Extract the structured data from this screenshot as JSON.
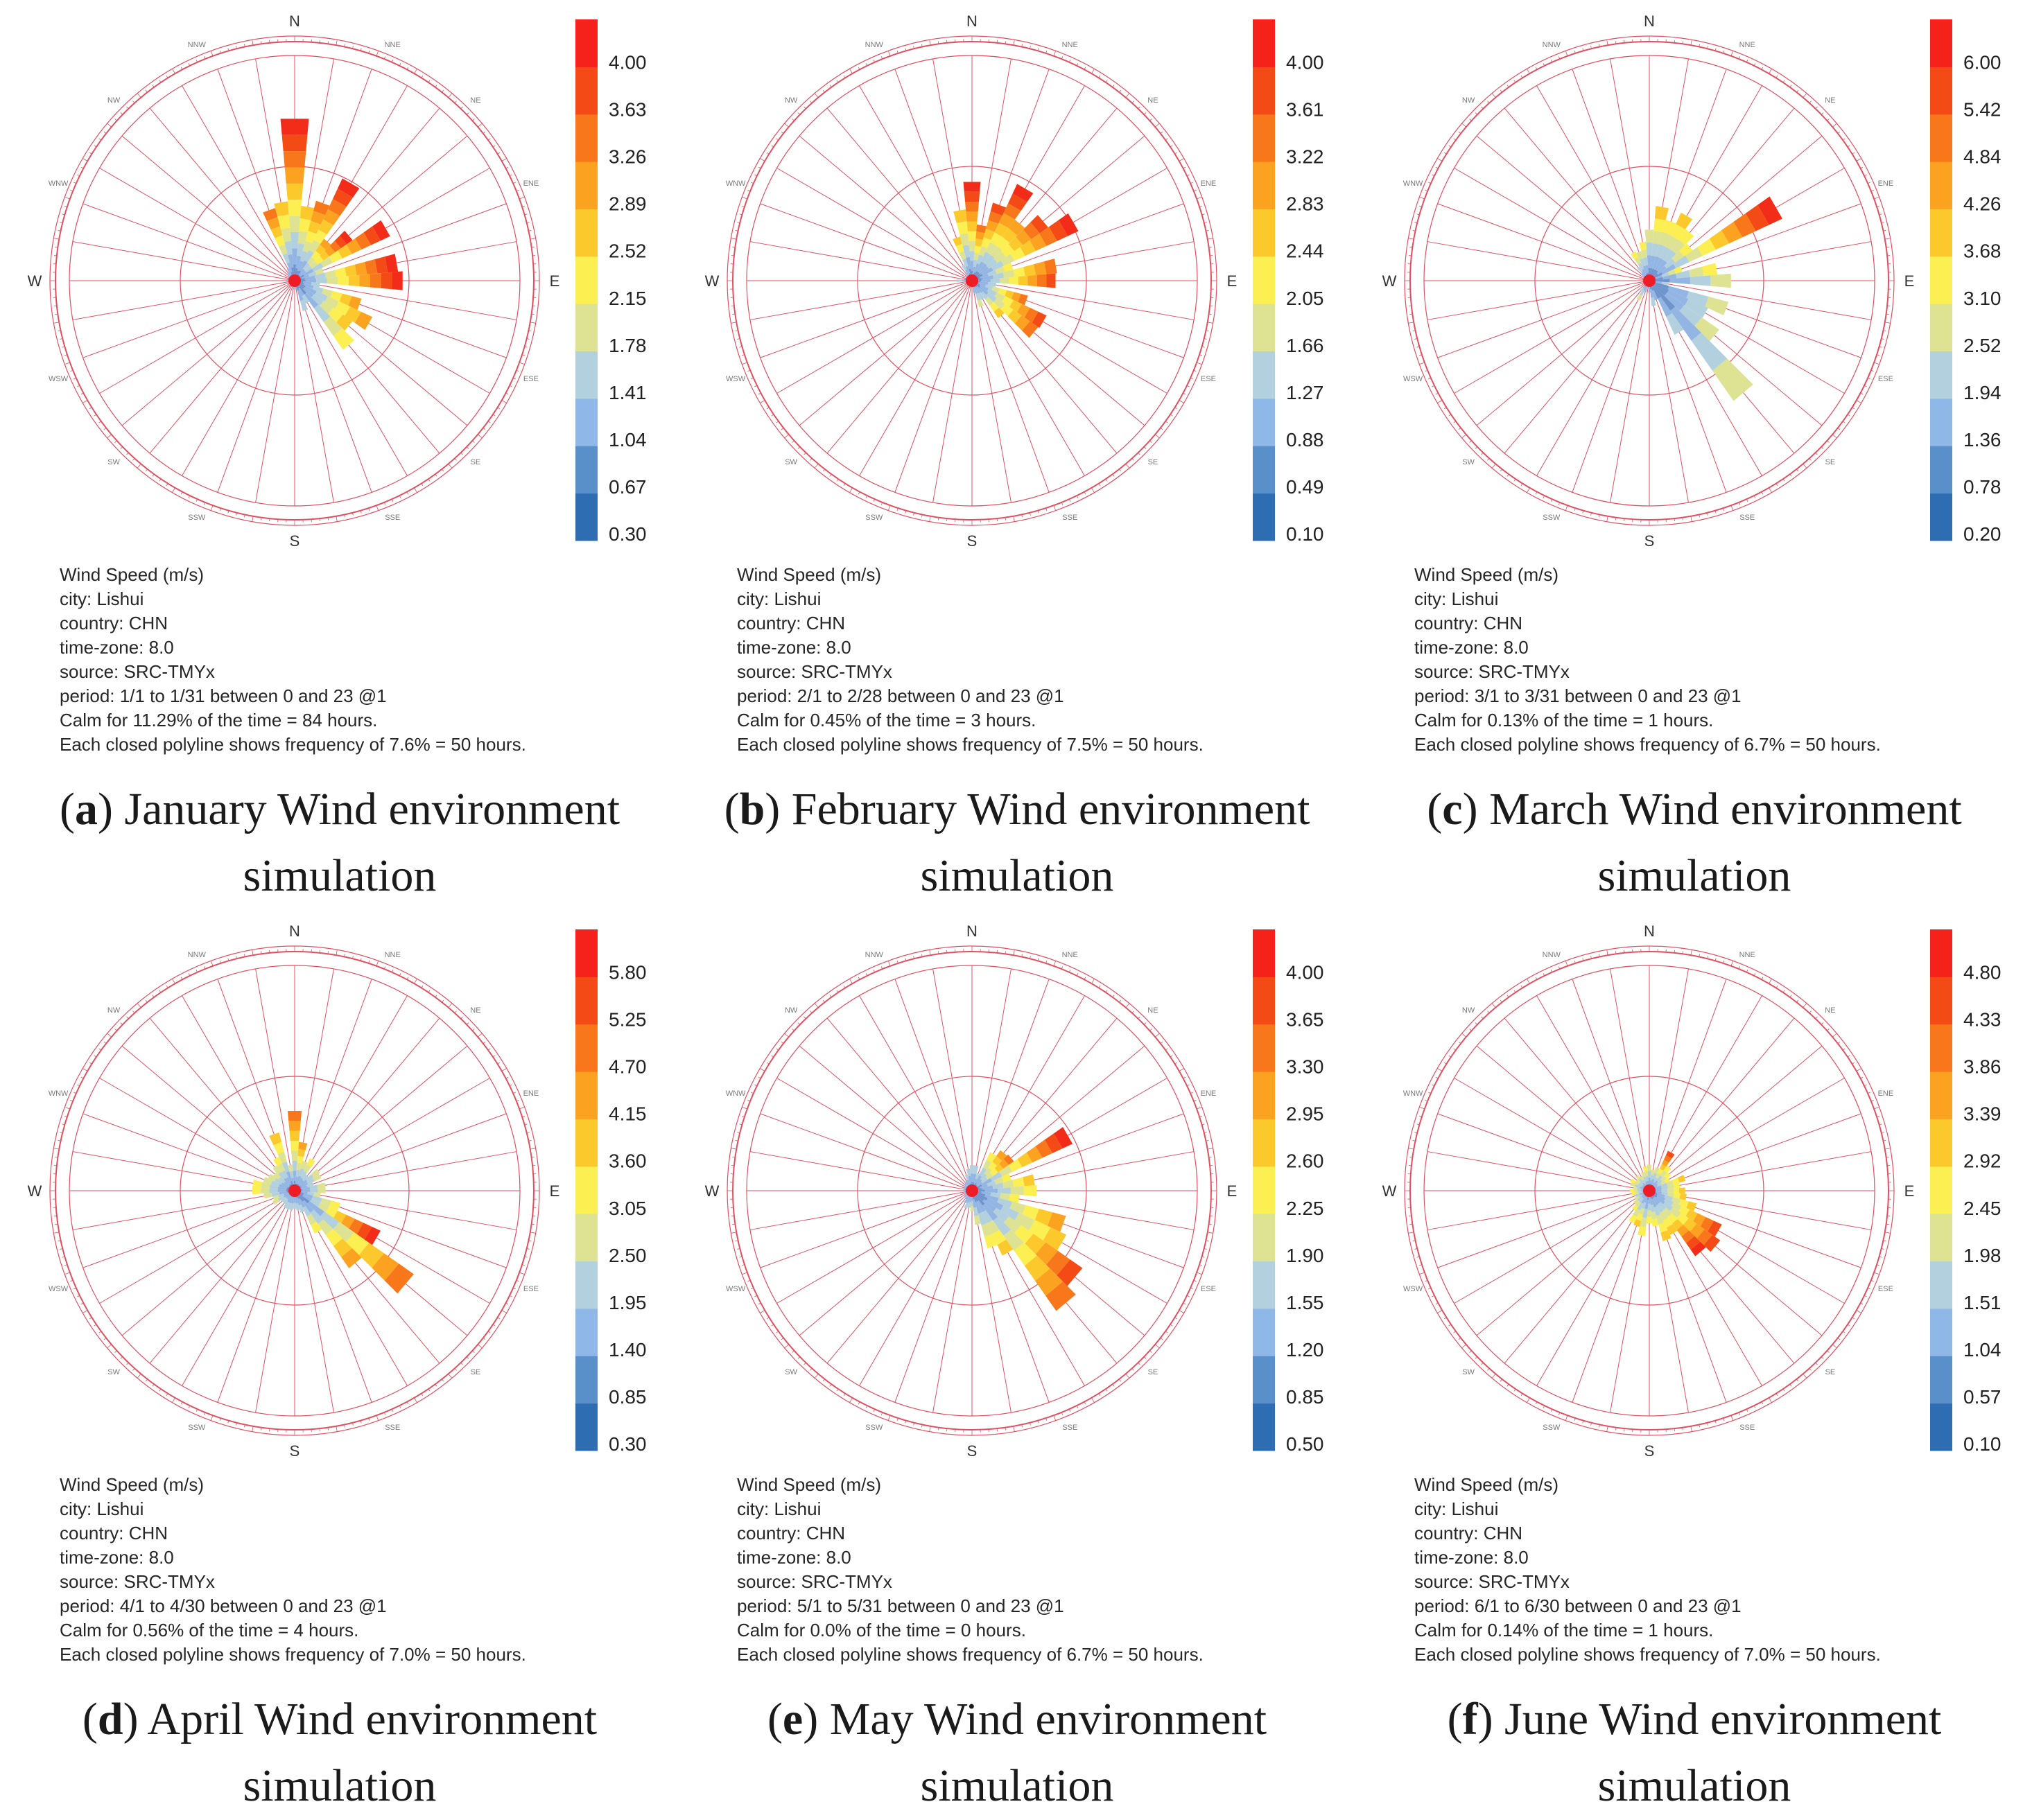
{
  "figure": {
    "direction_labels": [
      "N",
      "NNE",
      "NE",
      "ENE",
      "E",
      "ESE",
      "SE",
      "SSE",
      "S",
      "SSW",
      "SW",
      "WSW",
      "W",
      "WNW",
      "NW",
      "NNW"
    ],
    "legend_palette": [
      "#2f6db3",
      "#5a90c9",
      "#8fb8e8",
      "#b3d0de",
      "#dde392",
      "#fbef52",
      "#fcc92d",
      "#fba221",
      "#f8771a",
      "#f44b16",
      "#f5211b"
    ],
    "bar_palette": [
      "#6e93cd",
      "#93b5e3",
      "#b3d0de",
      "#dde392",
      "#fbef52",
      "#fcc92d",
      "#fba221",
      "#f8771a",
      "#f44b16",
      "#f22c18"
    ],
    "grid_color": "#e05060",
    "center_color": "#ee1c25"
  },
  "panels": [
    {
      "caption": {
        "letter": "a",
        "text": "January Wind environment simulation"
      },
      "info": {
        "title": "Wind Speed (m/s)",
        "city": "city: Lishui",
        "country": "country: CHN",
        "timezone": "time-zone: 8.0",
        "source": "source: SRC-TMYx",
        "period": "period: 1/1 to 1/31 between 0 and 23 @1",
        "calm": "Calm for 11.29% of the time = 84 hours.",
        "polyline": "Each closed polyline shows frequency of 7.6% = 50 hours."
      },
      "chart_data": {
        "type": "wind-rose",
        "title": "Wind Speed (m/s)",
        "legend_ticks": [
          "4.00",
          "3.63",
          "3.26",
          "2.89",
          "2.52",
          "2.15",
          "1.78",
          "1.41",
          "1.04",
          "0.67",
          "0.30"
        ],
        "directions_deg": [
          0,
          10,
          20,
          30,
          40,
          50,
          60,
          70,
          80,
          90,
          100,
          110,
          120,
          130,
          140,
          150,
          160,
          170,
          180,
          190,
          200,
          210,
          220,
          230,
          240,
          250,
          260,
          270,
          280,
          290,
          300,
          310,
          320,
          330,
          340,
          350
        ],
        "frequency_percent": [
          10.8,
          5.0,
          5.5,
          7.5,
          3.4,
          4.7,
          7.0,
          2.0,
          6.9,
          7.2,
          1.7,
          4.6,
          5.7,
          4.7,
          5.6,
          1.7,
          2.1,
          0.6,
          0.3,
          0.6,
          0.4,
          0.3,
          0.3,
          0.4,
          0.3,
          0.4,
          0.3,
          0.6,
          0.4,
          0.5,
          0.4,
          0.5,
          0.7,
          0.9,
          5.0,
          5.3
        ],
        "max_speed_band": [
          9,
          5,
          7,
          9,
          6,
          9,
          9,
          3,
          9,
          9,
          2,
          6,
          6,
          5,
          4,
          2,
          2,
          1,
          0,
          1,
          0,
          0,
          0,
          0,
          0,
          0,
          0,
          1,
          0,
          0,
          0,
          1,
          1,
          1,
          7,
          5
        ],
        "ring_frequency_percent": 7.6,
        "ring_count": 2
      }
    },
    {
      "caption": {
        "letter": "b",
        "text": "February Wind environment simulation"
      },
      "info": {
        "title": "Wind Speed (m/s)",
        "city": "city: Lishui",
        "country": "country: CHN",
        "timezone": "time-zone: 8.0",
        "source": "source: SRC-TMYx",
        "period": "period: 2/1 to 2/28 between 0 and 23 @1",
        "calm": "Calm for 0.45% of the time = 3 hours.",
        "polyline": "Each closed polyline shows frequency of 7.5% = 50 hours."
      },
      "chart_data": {
        "type": "wind-rose",
        "title": "Wind Speed (m/s)",
        "legend_ticks": [
          "4.00",
          "3.61",
          "3.22",
          "2.83",
          "2.44",
          "2.05",
          "1.66",
          "1.27",
          "0.88",
          "0.49",
          "0.10"
        ],
        "directions_deg": [
          0,
          10,
          20,
          30,
          40,
          50,
          60,
          70,
          80,
          90,
          100,
          110,
          120,
          130,
          140,
          150,
          160,
          170,
          180,
          190,
          200,
          210,
          220,
          230,
          240,
          250,
          260,
          270,
          280,
          290,
          300,
          310,
          320,
          330,
          340,
          350
        ],
        "frequency_percent": [
          6.5,
          3.7,
          5.3,
          7.0,
          4.9,
          6.1,
          7.7,
          2.8,
          5.6,
          5.5,
          1.6,
          3.8,
          5.4,
          5.3,
          3.0,
          1.4,
          1.8,
          0.8,
          0.4,
          0.3,
          0.3,
          0.3,
          0.4,
          0.3,
          0.3,
          0.3,
          0.3,
          1.0,
          0.5,
          0.4,
          0.3,
          0.4,
          0.6,
          1.2,
          3.0,
          4.7
        ],
        "max_speed_band": [
          9,
          7,
          8,
          9,
          6,
          8,
          9,
          4,
          7,
          8,
          2,
          7,
          8,
          7,
          5,
          2,
          3,
          1,
          1,
          0,
          0,
          0,
          0,
          0,
          0,
          0,
          0,
          2,
          0,
          0,
          0,
          0,
          1,
          2,
          5,
          5
        ],
        "ring_frequency_percent": 7.5,
        "ring_count": 2
      }
    },
    {
      "caption": {
        "letter": "c",
        "text": "March Wind environment simulation"
      },
      "info": {
        "title": "Wind Speed (m/s)",
        "city": "city: Lishui",
        "country": "country: CHN",
        "timezone": "time-zone: 8.0",
        "source": "source: SRC-TMYx",
        "period": "period: 3/1 to 3/31 between 0 and 23 @1",
        "calm": "Calm for 0.13% of the time = 1 hours.",
        "polyline": "Each closed polyline shows frequency of 6.7% = 50 hours."
      },
      "chart_data": {
        "type": "wind-rose",
        "title": "Wind Speed (m/s)",
        "legend_ticks": [
          "6.00",
          "5.42",
          "4.84",
          "4.26",
          "3.68",
          "3.10",
          "2.52",
          "1.94",
          "1.36",
          "0.78",
          "0.20"
        ],
        "directions_deg": [
          0,
          10,
          20,
          30,
          40,
          50,
          60,
          70,
          80,
          90,
          100,
          110,
          120,
          130,
          140,
          150,
          160,
          170,
          180,
          190,
          200,
          210,
          220,
          230,
          240,
          250,
          260,
          270,
          280,
          290,
          300,
          310,
          320,
          330,
          340,
          350
        ],
        "frequency_percent": [
          3.0,
          4.4,
          3.7,
          4.4,
          3.7,
          3.1,
          8.6,
          2.0,
          4.0,
          4.8,
          1.1,
          4.8,
          3.8,
          5.0,
          8.6,
          3.5,
          1.2,
          1.5,
          0.7,
          0.4,
          0.7,
          1.3,
          0.8,
          0.3,
          0.3,
          0.3,
          0.3,
          0.3,
          0.2,
          0.2,
          0.3,
          0.6,
          1.0,
          1.9,
          1.8,
          2.3
        ],
        "max_speed_band": [
          3,
          5,
          4,
          5,
          4,
          4,
          9,
          4,
          4,
          3,
          2,
          3,
          2,
          3,
          3,
          2,
          1,
          2,
          1,
          0,
          1,
          3,
          2,
          0,
          0,
          0,
          0,
          0,
          0,
          0,
          0,
          1,
          2,
          4,
          3,
          4
        ],
        "ring_frequency_percent": 6.7,
        "ring_count": 2
      }
    },
    {
      "caption": {
        "letter": "d",
        "text": "April Wind environment simulation"
      },
      "info": {
        "title": "Wind Speed (m/s)",
        "city": "city: Lishui",
        "country": "country: CHN",
        "timezone": "time-zone: 8.0",
        "source": "source: SRC-TMYx",
        "period": "period: 4/1 to 4/30 between 0 and 23 @1",
        "calm": "Calm for 0.56% of the time = 4 hours.",
        "polyline": "Each closed polyline shows frequency of 7.0% = 50 hours."
      },
      "chart_data": {
        "type": "wind-rose",
        "title": "Wind Speed (m/s)",
        "legend_ticks": [
          "5.80",
          "5.25",
          "4.70",
          "4.15",
          "3.60",
          "3.05",
          "2.50",
          "1.95",
          "1.40",
          "0.85",
          "0.30"
        ],
        "directions_deg": [
          0,
          10,
          20,
          30,
          40,
          50,
          60,
          70,
          80,
          90,
          100,
          110,
          120,
          130,
          140,
          150,
          160,
          170,
          180,
          190,
          200,
          210,
          220,
          230,
          240,
          250,
          260,
          270,
          280,
          290,
          300,
          310,
          320,
          330,
          340,
          350
        ],
        "frequency_percent": [
          4.9,
          3.0,
          1.9,
          2.2,
          1.2,
          1.9,
          1.8,
          1.2,
          1.9,
          1.9,
          1.6,
          2.9,
          5.8,
          8.9,
          5.8,
          2.9,
          1.4,
          1.2,
          1.1,
          1.2,
          1.2,
          1.2,
          1.0,
          1.0,
          1.5,
          1.4,
          1.9,
          2.6,
          2.6,
          2.0,
          1.8,
          1.6,
          1.9,
          2.3,
          3.7,
          1.6
        ],
        "max_speed_band": [
          7,
          6,
          3,
          4,
          2,
          3,
          3,
          2,
          3,
          3,
          3,
          4,
          9,
          7,
          6,
          4,
          2,
          2,
          2,
          2,
          2,
          2,
          2,
          2,
          3,
          3,
          3,
          4,
          4,
          3,
          3,
          3,
          3,
          4,
          5,
          3
        ],
        "ring_frequency_percent": 7.0,
        "ring_count": 2
      }
    },
    {
      "caption": {
        "letter": "e",
        "text": "May Wind environment simulation"
      },
      "info": {
        "title": "Wind Speed (m/s)",
        "city": "city: Lishui",
        "country": "country: CHN",
        "timezone": "time-zone: 8.0",
        "source": "source: SRC-TMYx",
        "period": "period: 5/1 to 5/31 between 0 and 23 @1",
        "calm": "Calm for 0.0% of the time = 0 hours.",
        "polyline": "Each closed polyline shows frequency of 6.7% = 50 hours."
      },
      "chart_data": {
        "type": "wind-rose",
        "title": "Wind Speed (m/s)",
        "legend_ticks": [
          "4.00",
          "3.65",
          "3.30",
          "2.95",
          "2.60",
          "2.25",
          "1.90",
          "1.55",
          "1.20",
          "0.85",
          "0.50"
        ],
        "directions_deg": [
          0,
          10,
          20,
          30,
          40,
          50,
          60,
          70,
          80,
          90,
          100,
          110,
          120,
          130,
          140,
          150,
          160,
          170,
          180,
          190,
          200,
          210,
          220,
          230,
          240,
          250,
          260,
          270,
          280,
          290,
          300,
          310,
          320,
          330,
          340,
          350
        ],
        "frequency_percent": [
          1.5,
          1.5,
          1.1,
          2.5,
          2.9,
          3.0,
          6.5,
          2.4,
          3.7,
          3.8,
          2.8,
          5.7,
          6.1,
          7.9,
          8.6,
          4.2,
          3.5,
          2.0,
          1.2,
          1.0,
          1.1,
          0.8,
          0.6,
          0.5,
          0.5,
          0.5,
          0.4,
          0.5,
          0.4,
          0.5,
          0.5,
          0.6,
          0.6,
          0.7,
          1.0,
          1.3
        ],
        "max_speed_band": [
          2,
          2,
          2,
          4,
          6,
          7,
          9,
          4,
          5,
          4,
          4,
          6,
          5,
          8,
          7,
          5,
          4,
          3,
          3,
          2,
          2,
          1,
          1,
          1,
          1,
          1,
          0,
          1,
          0,
          1,
          1,
          1,
          1,
          1,
          2,
          2
        ],
        "ring_frequency_percent": 6.7,
        "ring_count": 2
      }
    },
    {
      "caption": {
        "letter": "f",
        "text": "June Wind environment simulation"
      },
      "info": {
        "title": "Wind Speed (m/s)",
        "city": "city: Lishui",
        "country": "country: CHN",
        "timezone": "time-zone: 8.0",
        "source": "source: SRC-TMYx",
        "period": "period: 6/1 to 6/30 between 0 and 23 @1",
        "calm": "Calm for 0.14% of the time = 1 hours.",
        "polyline": "Each closed polyline shows frequency of 7.0% = 50 hours."
      },
      "chart_data": {
        "type": "wind-rose",
        "title": "Wind Speed (m/s)",
        "legend_ticks": [
          "4.80",
          "4.33",
          "3.86",
          "3.39",
          "2.92",
          "2.45",
          "1.98",
          "1.51",
          "1.04",
          "0.57",
          "0.10"
        ],
        "directions_deg": [
          0,
          10,
          20,
          30,
          40,
          50,
          60,
          70,
          80,
          90,
          100,
          110,
          120,
          130,
          140,
          150,
          160,
          170,
          180,
          190,
          200,
          210,
          220,
          230,
          240,
          250,
          260,
          270,
          280,
          290,
          300,
          310,
          320,
          330,
          340,
          350
        ],
        "frequency_percent": [
          1.6,
          1.3,
          1.5,
          2.7,
          1.9,
          1.6,
          1.4,
          2.3,
          1.9,
          2.2,
          2.3,
          3.0,
          4.9,
          5.3,
          4.9,
          3.0,
          3.2,
          2.2,
          2.0,
          2.8,
          2.3,
          2.2,
          1.5,
          1.2,
          1.0,
          0.9,
          1.1,
          1.2,
          1.0,
          1.2,
          1.3,
          1.0,
          1.2,
          1.0,
          1.2,
          1.5
        ],
        "max_speed_band": [
          3,
          3,
          3,
          8,
          4,
          4,
          4,
          5,
          4,
          5,
          5,
          5,
          8,
          8,
          9,
          5,
          5,
          4,
          4,
          4,
          5,
          4,
          4,
          3,
          3,
          2,
          4,
          4,
          3,
          3,
          4,
          3,
          3,
          3,
          3,
          4
        ],
        "ring_frequency_percent": 7.0,
        "ring_count": 2
      }
    }
  ]
}
